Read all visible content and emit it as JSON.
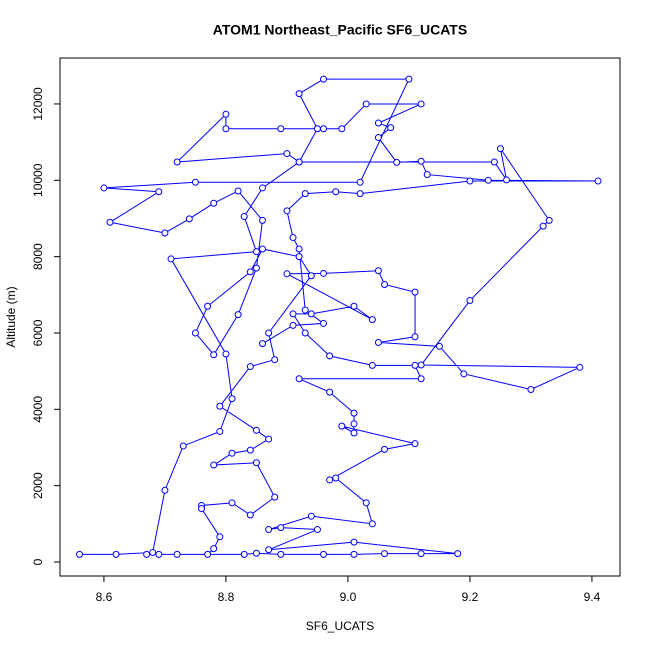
{
  "chart_data": {
    "type": "line",
    "marker": "circle",
    "title": "ATOM1 Northeast_Pacific SF6_UCATS",
    "x_label": "SF6_UCATS",
    "y_label": "Altitude (m)",
    "xlim": [
      8.528,
      9.446
    ],
    "ylim": [
      -367,
      13204
    ],
    "xticks": [
      8.6,
      8.8,
      {
        "value": 9,
        "label": "9.0"
      },
      9.2,
      9.4
    ],
    "yticks": [
      0,
      2000,
      4000,
      6000,
      8000,
      10000,
      12000
    ],
    "x": [
      8.56,
      8.62,
      8.68,
      8.7,
      8.73,
      8.79,
      8.81,
      8.8,
      8.71,
      8.85,
      8.83,
      8.86,
      8.92,
      8.95,
      8.92,
      8.96,
      9.1,
      9.02,
      8.75,
      8.6,
      8.69,
      8.61,
      8.7,
      8.74,
      8.78,
      8.82,
      8.86,
      8.85,
      8.82,
      8.78,
      8.75,
      8.77,
      8.84,
      8.86,
      8.92,
      8.94,
      8.87,
      8.88,
      8.84,
      8.79,
      8.85,
      8.87,
      8.84,
      8.81,
      8.78,
      8.85,
      8.88,
      8.84,
      8.81,
      8.76,
      8.76,
      8.79,
      8.78,
      8.77,
      8.72,
      8.69,
      8.67,
      8.83,
      8.85,
      8.89,
      8.96,
      9.01,
      9.06,
      9.12,
      9.18,
      9.01,
      8.87,
      8.95,
      8.89,
      8.87,
      8.94,
      9.04,
      9.03,
      8.98,
      8.97,
      9.06,
      9.11,
      8.99,
      9.01,
      9.01,
      9.01,
      8.97,
      8.92,
      9.12,
      9.11,
      9.04,
      8.97,
      8.93,
      8.91,
      8.94,
      9.01,
      9.04,
      8.9,
      8.96,
      9.05,
      9.06,
      9.11,
      9.11,
      9.05,
      9.15,
      9.19,
      9.3,
      9.38,
      9.12,
      9.2,
      9.32,
      9.33,
      9.25,
      9.26,
      9.24,
      8.92,
      8.9,
      8.72,
      8.8,
      8.8,
      8.89,
      8.96,
      8.99,
      9.03,
      9.12,
      9.05,
      9.07,
      9.05,
      9.08,
      9.12,
      9.13,
      9.23,
      9.41,
      9.2,
      9.02,
      8.98,
      8.93,
      8.9,
      8.91,
      8.92,
      8.93,
      8.96,
      8.91,
      8.86
    ],
    "series": [
      {
        "color": "#0000ff",
        "values": [
          200,
          200,
          250,
          1880,
          3040,
          3420,
          4280,
          5450,
          7940,
          8130,
          9050,
          9800,
          10480,
          11350,
          12270,
          12650,
          12650,
          9950,
          9950,
          9800,
          9700,
          8900,
          8620,
          8990,
          9400,
          9720,
          8950,
          7700,
          6480,
          5430,
          6000,
          6700,
          7600,
          8200,
          8000,
          7500,
          6000,
          5300,
          5120,
          4080,
          3450,
          3220,
          2930,
          2850,
          2540,
          2600,
          1700,
          1230,
          1550,
          1480,
          1400,
          660,
          350,
          200,
          200,
          200,
          200,
          200,
          230,
          200,
          200,
          200,
          220,
          220,
          220,
          520,
          320,
          850,
          900,
          850,
          1200,
          1000,
          1550,
          2200,
          2150,
          2950,
          3100,
          3560,
          3380,
          3620,
          3900,
          4450,
          4800,
          4800,
          5150,
          5150,
          5400,
          6000,
          6500,
          6500,
          6700,
          6350,
          7550,
          7560,
          7630,
          7270,
          7070,
          5900,
          5750,
          5650,
          4930,
          4520,
          5100,
          5160,
          6850,
          8800,
          8950,
          10830,
          10010,
          10480,
          10480,
          10700,
          10480,
          11730,
          11350,
          11350,
          11350,
          11350,
          12000,
          12000,
          11500,
          11380,
          11120,
          10470,
          10500,
          10150,
          10000,
          9980,
          9980,
          9650,
          9700,
          9650,
          9200,
          8500,
          8200,
          6600,
          6250,
          6200,
          5720
        ]
      }
    ]
  }
}
